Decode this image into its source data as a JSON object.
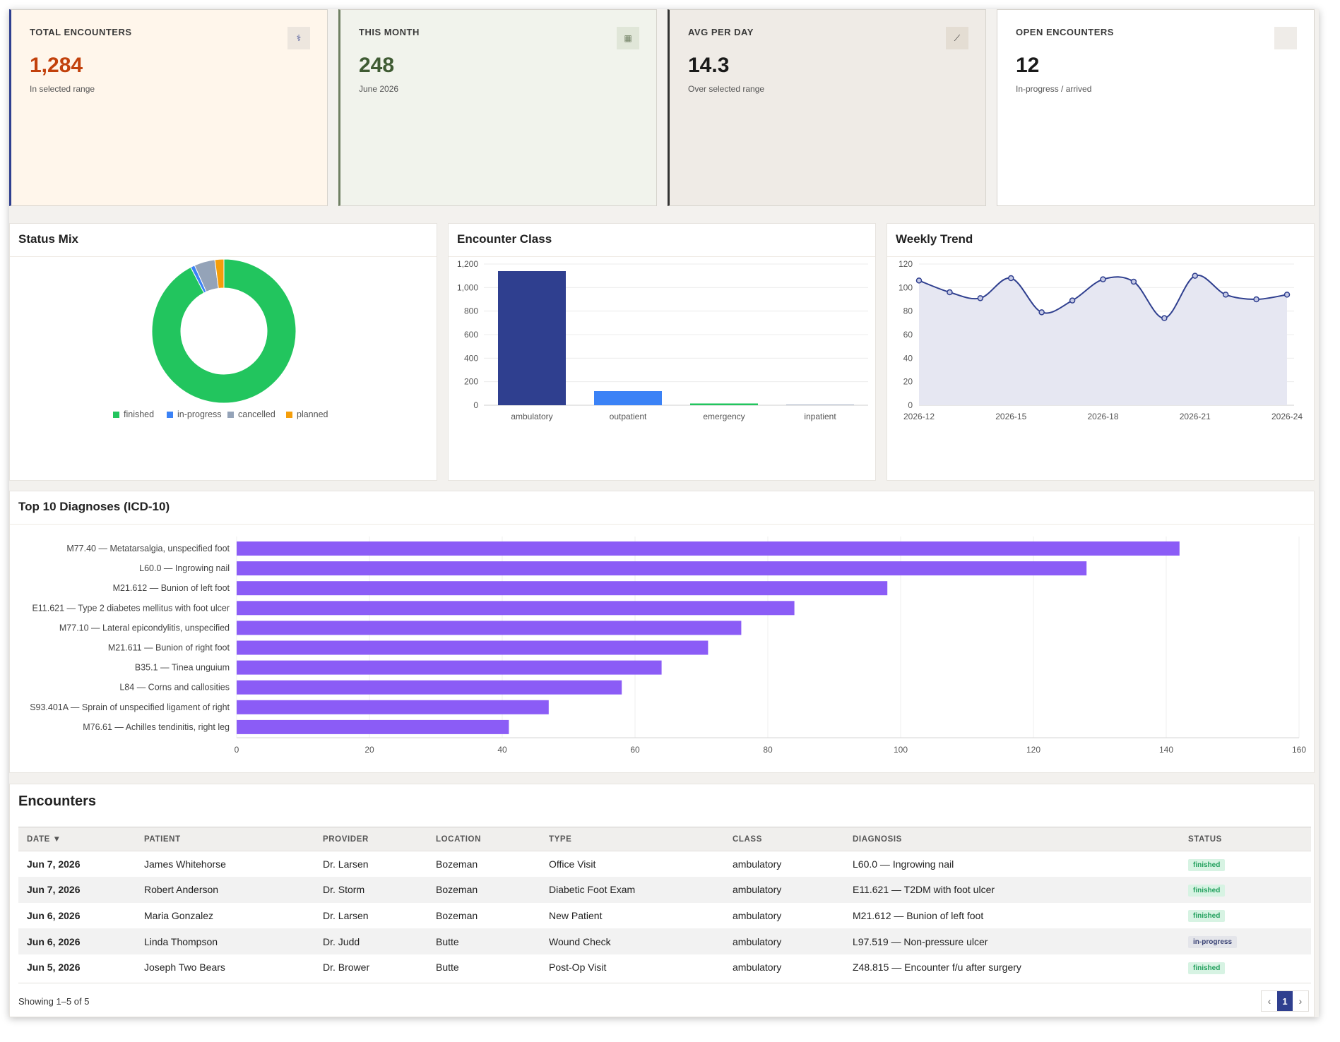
{
  "colors": {
    "background": "#f3f1ee",
    "navy": "#2f3f8f",
    "blue": "#3b82f6",
    "green": "#22c55e",
    "gray": "#94a3b8",
    "orange": "#f59e0b",
    "purple": "#8b5cf6",
    "accent_orange_value": "#c2410c",
    "accent_green_value": "#3f5b33"
  },
  "kpis": [
    {
      "label": "TOTAL ENCOUNTERS",
      "value": "1,284",
      "sub": "In selected range",
      "icon": "stethoscope-icon",
      "glyph": "⚕"
    },
    {
      "label": "THIS MONTH",
      "value": "248",
      "sub": "June 2026",
      "icon": "calendar-icon",
      "glyph": "▦"
    },
    {
      "label": "AVG PER DAY",
      "value": "14.3",
      "sub": "Over selected range",
      "icon": "chart-line-icon",
      "glyph": "⟋"
    },
    {
      "label": "OPEN ENCOUNTERS",
      "value": "12",
      "sub": "In-progress / arrived",
      "icon": "blank-icon",
      "glyph": ""
    }
  ],
  "panels": {
    "status_mix": "Status Mix",
    "encounter_class": "Encounter Class",
    "weekly_trend": "Weekly Trend",
    "top_diagnoses": "Top 10 Diagnoses (ICD-10)"
  },
  "chart_data": [
    {
      "type": "pie",
      "variant": "donut",
      "labels": [
        "finished",
        "in-progress",
        "cancelled",
        "planned"
      ],
      "values": [
        1186,
        12,
        60,
        26
      ],
      "colors": [
        "#22c55e",
        "#3b82f6",
        "#94a3b8",
        "#f59e0b"
      ],
      "legend": "bottom"
    },
    {
      "type": "bar",
      "categories": [
        "ambulatory",
        "outpatient",
        "emergency",
        "inpatient"
      ],
      "values": [
        1140,
        120,
        15,
        5
      ],
      "colors": [
        "#2f3f8f",
        "#3b82f6",
        "#22c55e",
        "#94a3b8"
      ],
      "ylim": [
        0,
        1200
      ],
      "yticks": [
        "0",
        "200",
        "400",
        "600",
        "800",
        "1,000",
        "1,200"
      ],
      "grid": true
    },
    {
      "type": "area",
      "x": [
        "2026-12",
        "2026-13",
        "2026-14",
        "2026-15",
        "2026-16",
        "2026-17",
        "2026-18",
        "2026-19",
        "2026-20",
        "2026-21",
        "2026-22",
        "2026-23",
        "2026-24"
      ],
      "values": [
        106,
        96,
        91,
        108,
        79,
        89,
        107,
        105,
        74,
        110,
        94,
        90,
        94
      ],
      "x_tick_labels": [
        "2026-12",
        "2026-15",
        "2026-18",
        "2026-21",
        "2026-24"
      ],
      "ylim": [
        0,
        120
      ],
      "yticks": [
        "0",
        "20",
        "40",
        "60",
        "80",
        "100",
        "120"
      ],
      "grid": true
    },
    {
      "type": "bar",
      "orientation": "horizontal",
      "categories": [
        "M77.40 — Metatarsalgia, unspecified foot",
        "L60.0 — Ingrowing nail",
        "M21.612 — Bunion of left foot",
        "E11.621 — Type 2 diabetes mellitus with foot ulcer",
        "M77.10 — Lateral epicondylitis, unspecified",
        "M21.611 — Bunion of right foot",
        "B35.1 — Tinea unguium",
        "L84 — Corns and callosities",
        "S93.401A — Sprain of unspecified ligament of right",
        "M76.61 — Achilles tendinitis, right leg"
      ],
      "values": [
        142,
        128,
        98,
        84,
        76,
        71,
        64,
        58,
        47,
        41
      ],
      "xlim": [
        0,
        160
      ],
      "xticks": [
        "0",
        "20",
        "40",
        "60",
        "80",
        "100",
        "120",
        "140",
        "160"
      ],
      "grid": true
    }
  ],
  "encounters": {
    "title": "Encounters",
    "columns": [
      "DATE ▼",
      "PATIENT",
      "PROVIDER",
      "LOCATION",
      "TYPE",
      "CLASS",
      "DIAGNOSIS",
      "STATUS"
    ],
    "rows": [
      {
        "date": "Jun 7, 2026",
        "patient": "James Whitehorse",
        "provider": "Dr. Larsen",
        "location": "Bozeman",
        "type": "Office Visit",
        "class": "ambulatory",
        "diagnosis": "L60.0 — Ingrowing nail",
        "status": "finished"
      },
      {
        "date": "Jun 7, 2026",
        "patient": "Robert Anderson",
        "provider": "Dr. Storm",
        "location": "Bozeman",
        "type": "Diabetic Foot Exam",
        "class": "ambulatory",
        "diagnosis": "E11.621 — T2DM with foot ulcer",
        "status": "finished"
      },
      {
        "date": "Jun 6, 2026",
        "patient": "Maria Gonzalez",
        "provider": "Dr. Larsen",
        "location": "Bozeman",
        "type": "New Patient",
        "class": "ambulatory",
        "diagnosis": "M21.612 — Bunion of left foot",
        "status": "finished"
      },
      {
        "date": "Jun 6, 2026",
        "patient": "Linda Thompson",
        "provider": "Dr. Judd",
        "location": "Butte",
        "type": "Wound Check",
        "class": "ambulatory",
        "diagnosis": "L97.519 — Non-pressure ulcer",
        "status": "in-progress"
      },
      {
        "date": "Jun 5, 2026",
        "patient": "Joseph Two Bears",
        "provider": "Dr. Brower",
        "location": "Butte",
        "type": "Post-Op Visit",
        "class": "ambulatory",
        "diagnosis": "Z48.815 — Encounter f/u after surgery",
        "status": "finished"
      }
    ],
    "footer": "Showing 1–5 of 5",
    "pagination": {
      "prev": "‹",
      "page": "1",
      "next": "›"
    }
  }
}
